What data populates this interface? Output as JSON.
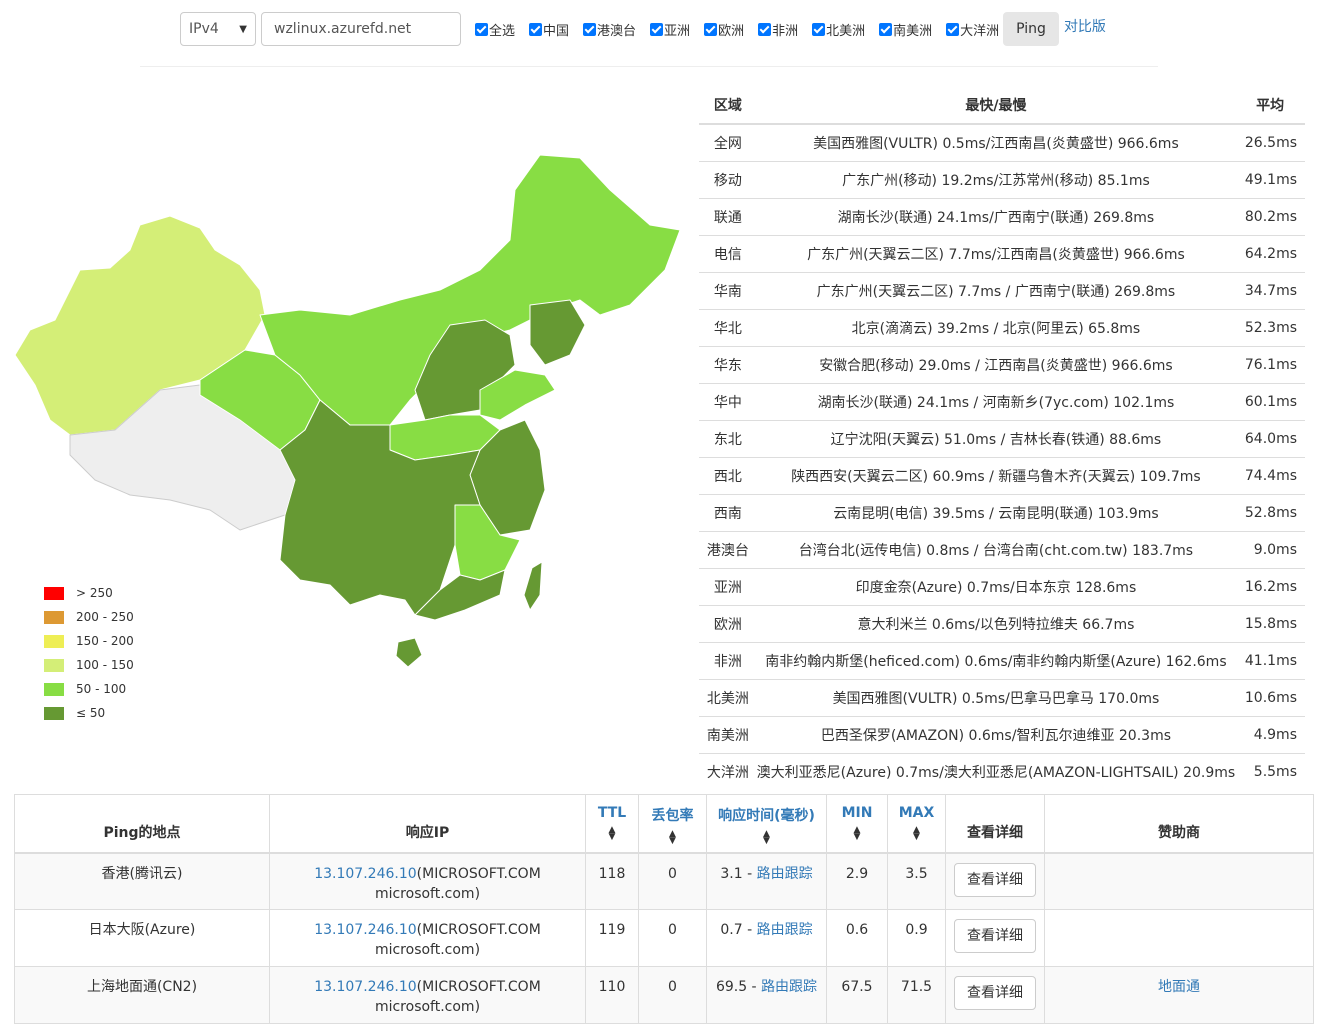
{
  "toolbar": {
    "ip_version": "IPv4",
    "host": "wzlinux.azurefd.net",
    "checkboxes": [
      "全选",
      "中国",
      "港澳台",
      "亚洲",
      "欧洲",
      "非洲",
      "北美洲",
      "南美洲",
      "大洋洲"
    ],
    "ping_label": "Ping",
    "compare_label": "对比版"
  },
  "legend": [
    {
      "label": "> 250",
      "color": "#ff0000"
    },
    {
      "label": "200 - 250",
      "color": "#dd9933"
    },
    {
      "label": "150 - 200",
      "color": "#eeee55"
    },
    {
      "label": "100 - 150",
      "color": "#d4ee77"
    },
    {
      "label": "50 - 100",
      "color": "#88dd44"
    },
    {
      "label": "≤ 50",
      "color": "#669933"
    }
  ],
  "region_table": {
    "headers": {
      "region": "区域",
      "fastest": "最快/最慢",
      "avg": "平均"
    },
    "rows": [
      {
        "region": "全网",
        "fastest": "美国西雅图(VULTR) 0.5ms/江西南昌(炎黄盛世) 966.6ms",
        "avg": "26.5ms"
      },
      {
        "region": "移动",
        "fastest": "广东广州(移动) 19.2ms/江苏常州(移动) 85.1ms",
        "avg": "49.1ms"
      },
      {
        "region": "联通",
        "fastest": "湖南长沙(联通) 24.1ms/广西南宁(联通) 269.8ms",
        "avg": "80.2ms"
      },
      {
        "region": "电信",
        "fastest": "广东广州(天翼云二区) 7.7ms/江西南昌(炎黄盛世) 966.6ms",
        "avg": "64.2ms"
      },
      {
        "region": "华南",
        "fastest": "广东广州(天翼云二区) 7.7ms / 广西南宁(联通) 269.8ms",
        "avg": "34.7ms"
      },
      {
        "region": "华北",
        "fastest": "北京(滴滴云) 39.2ms / 北京(阿里云) 65.8ms",
        "avg": "52.3ms"
      },
      {
        "region": "华东",
        "fastest": "安徽合肥(移动) 29.0ms / 江西南昌(炎黄盛世) 966.6ms",
        "avg": "76.1ms"
      },
      {
        "region": "华中",
        "fastest": "湖南长沙(联通) 24.1ms / 河南新乡(7yc.com) 102.1ms",
        "avg": "60.1ms"
      },
      {
        "region": "东北",
        "fastest": "辽宁沈阳(天翼云) 51.0ms / 吉林长春(铁通) 88.6ms",
        "avg": "64.0ms"
      },
      {
        "region": "西北",
        "fastest": "陕西西安(天翼云二区) 60.9ms / 新疆乌鲁木齐(天翼云) 109.7ms",
        "avg": "74.4ms"
      },
      {
        "region": "西南",
        "fastest": "云南昆明(电信) 39.5ms / 云南昆明(联通) 103.9ms",
        "avg": "52.8ms"
      },
      {
        "region": "港澳台",
        "fastest": "台湾台北(远传电信) 0.8ms / 台湾台南(cht.com.tw) 183.7ms",
        "avg": "9.0ms"
      },
      {
        "region": "亚洲",
        "fastest": "印度金奈(Azure) 0.7ms/日本东京 128.6ms",
        "avg": "16.2ms"
      },
      {
        "region": "欧洲",
        "fastest": "意大利米兰 0.6ms/以色列特拉维夫 66.7ms",
        "avg": "15.8ms"
      },
      {
        "region": "非洲",
        "fastest": "南非约翰内斯堡(heficed.com) 0.6ms/南非约翰内斯堡(Azure) 162.6ms",
        "avg": "41.1ms"
      },
      {
        "region": "北美洲",
        "fastest": "美国西雅图(VULTR) 0.5ms/巴拿马巴拿马 170.0ms",
        "avg": "10.6ms"
      },
      {
        "region": "南美洲",
        "fastest": "巴西圣保罗(AMAZON) 0.6ms/智利瓦尔迪维亚 20.3ms",
        "avg": "4.9ms"
      },
      {
        "region": "大洋洲",
        "fastest": "澳大利亚悉尼(Azure) 0.7ms/澳大利亚悉尼(AMAZON-LIGHTSAIL) 20.9ms",
        "avg": "5.5ms"
      }
    ]
  },
  "ping_table": {
    "headers": {
      "location": "Ping的地点",
      "ip": "响应IP",
      "ttl": "TTL",
      "loss": "丢包率",
      "time": "响应时间(毫秒)",
      "min": "MIN",
      "max": "MAX",
      "detail": "查看详细",
      "sponsor": "赞助商"
    },
    "rows": [
      {
        "location": "香港(腾讯云)",
        "ip": "13.107.246.10",
        "ip_org": "(MICROSOFT.COM",
        "ip_host": "microsoft.com)",
        "ttl": "118",
        "loss": "0",
        "time": "3.1",
        "trace": "路由跟踪",
        "min": "2.9",
        "max": "3.5",
        "detail": "查看详细",
        "sponsor": ""
      },
      {
        "location": "日本大阪(Azure)",
        "ip": "13.107.246.10",
        "ip_org": "(MICROSOFT.COM",
        "ip_host": "microsoft.com)",
        "ttl": "119",
        "loss": "0",
        "time": "0.7",
        "trace": "路由跟踪",
        "min": "0.6",
        "max": "0.9",
        "detail": "查看详细",
        "sponsor": ""
      },
      {
        "location": "上海地面通(CN2)",
        "ip": "13.107.246.10",
        "ip_org": "(MICROSOFT.COM",
        "ip_host": "microsoft.com)",
        "ttl": "110",
        "loss": "0",
        "time": "69.5",
        "trace": "路由跟踪",
        "min": "67.5",
        "max": "71.5",
        "detail": "查看详细",
        "sponsor": "地面通"
      }
    ]
  },
  "map_colors": {
    "le50": "#669933",
    "r50_100": "#88dd44",
    "r100_150": "#d4ee77",
    "none": "#eeeeee"
  }
}
